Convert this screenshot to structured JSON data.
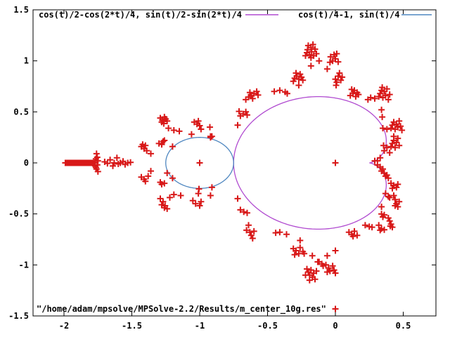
{
  "chart_data": {
    "type": "scatter",
    "title": "",
    "xlabel": "",
    "ylabel": "",
    "xlim": [
      -2.228,
      0.741
    ],
    "ylim": [
      -1.5,
      1.5
    ],
    "grid": false,
    "legend_position": "top-inside-and-bottom-inside",
    "background_color": "#ffffff",
    "border_color": "#000000",
    "x_ticks": {
      "values": [
        -2,
        -1.5,
        -1,
        -0.5,
        0,
        0.5
      ],
      "labels": [
        "-2",
        "-1.5",
        "-1",
        "-0.5",
        "0",
        "0.5"
      ]
    },
    "y_ticks": {
      "values": [
        -1.5,
        -1,
        -0.5,
        0,
        0.5,
        1,
        1.5
      ],
      "labels": [
        "-1.5",
        "-1",
        "-0.5",
        "0",
        "0.5",
        "1",
        "1.5"
      ]
    },
    "curves": [
      {
        "label": "cos(t)/2-cos(2*t)/4, sin(t)/2-sin(2*t)/4",
        "type": "parametric",
        "color": "#b04ad0",
        "x_terms": {
          "const": 0,
          "cos_t": 0.5,
          "cos_2t": -0.25
        },
        "y_terms": {
          "const": 0,
          "sin_t": 0.5,
          "sin_2t": -0.25
        },
        "t_range": [
          0,
          6.2832
        ]
      },
      {
        "label": "cos(t)/4-1, sin(t)/4",
        "type": "parametric",
        "color": "#4f87c0",
        "x_terms": {
          "const": -1,
          "cos_t": 0.25,
          "cos_2t": 0
        },
        "y_terms": {
          "const": 0,
          "sin_t": 0.25,
          "sin_2t": 0
        },
        "t_range": [
          0,
          6.2832
        ]
      }
    ],
    "scatter": {
      "label": "\"/home/adam/mpsolve/MPSolve-2.2/Results/m_center_10g.res\"",
      "color": "#d81818",
      "marker": "plus",
      "marker_size": 9,
      "points": [
        [
          0,
          0
        ],
        [
          -1,
          0
        ],
        [
          -1.99,
          0
        ],
        [
          -1.982,
          0
        ],
        [
          -1.974,
          0
        ],
        [
          -1.966,
          0
        ],
        [
          -1.958,
          0
        ],
        [
          -1.95,
          0
        ],
        [
          -1.942,
          0
        ],
        [
          -1.934,
          0
        ],
        [
          -1.926,
          0
        ],
        [
          -1.918,
          0
        ],
        [
          -1.91,
          0
        ],
        [
          -1.902,
          0
        ],
        [
          -1.894,
          0
        ],
        [
          -1.886,
          0
        ],
        [
          -1.878,
          0
        ],
        [
          -1.87,
          0
        ],
        [
          -1.862,
          0
        ],
        [
          -1.854,
          0
        ],
        [
          -1.846,
          0
        ],
        [
          -1.838,
          0
        ],
        [
          -1.83,
          0
        ],
        [
          -1.822,
          0
        ],
        [
          -1.814,
          0
        ],
        [
          -1.806,
          0
        ],
        [
          -1.798,
          0
        ],
        [
          -1.79,
          0
        ],
        [
          -1.782,
          0
        ],
        [
          -1.774,
          0
        ],
        [
          -1.76,
          0.09
        ],
        [
          -1.755,
          0.055
        ],
        [
          -1.765,
          0.04
        ],
        [
          -1.75,
          0.02
        ],
        [
          -1.77,
          0.015
        ],
        [
          -1.755,
          -0.02
        ],
        [
          -1.765,
          -0.045
        ],
        [
          -1.76,
          -0.06
        ],
        [
          -1.75,
          -0.085
        ],
        [
          -1.77,
          -0.03
        ],
        [
          -1.7,
          0.01
        ],
        [
          -1.68,
          -0.005
        ],
        [
          -1.66,
          0.03
        ],
        [
          -1.64,
          -0.03
        ],
        [
          -1.63,
          0
        ],
        [
          -1.61,
          0.05
        ],
        [
          -1.6,
          -0.01
        ],
        [
          -1.585,
          0
        ],
        [
          -1.565,
          0.015
        ],
        [
          -1.55,
          -0.015
        ],
        [
          -1.53,
          0
        ],
        [
          -1.51,
          0.005
        ],
        [
          -1.43,
          0.16
        ],
        [
          -1.42,
          0.18
        ],
        [
          -1.41,
          0.14
        ],
        [
          -1.4,
          0.17
        ],
        [
          -1.39,
          0.12
        ],
        [
          -1.36,
          0.09
        ],
        [
          -1.3,
          0.19
        ],
        [
          -1.28,
          0.18
        ],
        [
          -1.27,
          0.21
        ],
        [
          -1.26,
          0.22
        ],
        [
          -1.43,
          -0.14
        ],
        [
          -1.41,
          -0.16
        ],
        [
          -1.4,
          -0.18
        ],
        [
          -1.38,
          -0.13
        ],
        [
          -1.36,
          -0.08
        ],
        [
          -1.29,
          -0.19
        ],
        [
          -1.28,
          -0.21
        ],
        [
          -1.26,
          -0.2
        ],
        [
          -1.24,
          -0.1
        ],
        [
          -1.2,
          0.16
        ],
        [
          -1.2,
          -0.15
        ],
        [
          -1.06,
          0.28
        ],
        [
          -1.005,
          -0.255
        ],
        [
          -0.91,
          0.26
        ],
        [
          -0.91,
          -0.24
        ],
        [
          -1.29,
          0.44
        ],
        [
          -1.275,
          0.42
        ],
        [
          -1.26,
          0.45
        ],
        [
          -1.25,
          0.43
        ],
        [
          -1.28,
          0.4
        ],
        [
          -1.24,
          0.41
        ],
        [
          -1.265,
          0.385
        ],
        [
          -1.23,
          0.34
        ],
        [
          -1.19,
          0.32
        ],
        [
          -1.15,
          0.31
        ],
        [
          -1.04,
          0.4
        ],
        [
          -1.02,
          0.38
        ],
        [
          -1.01,
          0.41
        ],
        [
          -1,
          0.365
        ],
        [
          -0.99,
          0.33
        ],
        [
          -0.925,
          0.35
        ],
        [
          -0.92,
          0.26
        ],
        [
          -1.29,
          -0.35
        ],
        [
          -1.27,
          -0.38
        ],
        [
          -1.255,
          -0.42
        ],
        [
          -1.24,
          -0.45
        ],
        [
          -1.26,
          -0.44
        ],
        [
          -1.28,
          -0.41
        ],
        [
          -1.22,
          -0.34
        ],
        [
          -1.19,
          -0.31
        ],
        [
          -1.14,
          -0.32
        ],
        [
          -1.05,
          -0.37
        ],
        [
          -1.03,
          -0.4
        ],
        [
          -1,
          -0.42
        ],
        [
          -0.99,
          -0.38
        ],
        [
          -1.01,
          -0.3
        ],
        [
          -0.92,
          -0.32
        ],
        [
          -0.92,
          0.25
        ],
        [
          -0.72,
          0.37
        ],
        [
          -0.7,
          0.46
        ],
        [
          -0.68,
          0.48
        ],
        [
          -0.66,
          0.5
        ],
        [
          -0.71,
          0.505
        ],
        [
          -0.65,
          0.47
        ],
        [
          -0.66,
          0.62
        ],
        [
          -0.64,
          0.645
        ],
        [
          -0.62,
          0.66
        ],
        [
          -0.6,
          0.68
        ],
        [
          -0.63,
          0.69
        ],
        [
          -0.58,
          0.7
        ],
        [
          -0.57,
          0.665
        ],
        [
          -0.61,
          0.63
        ],
        [
          -0.72,
          -0.35
        ],
        [
          -0.7,
          -0.46
        ],
        [
          -0.675,
          -0.48
        ],
        [
          -0.65,
          -0.49
        ],
        [
          -0.64,
          -0.61
        ],
        [
          -0.655,
          -0.66
        ],
        [
          -0.63,
          -0.68
        ],
        [
          -0.62,
          -0.71
        ],
        [
          -0.61,
          -0.74
        ],
        [
          -0.6,
          -0.67
        ],
        [
          -0.45,
          0.7
        ],
        [
          -0.41,
          0.71
        ],
        [
          -0.37,
          0.695
        ],
        [
          -0.355,
          0.68
        ],
        [
          -0.31,
          0.8
        ],
        [
          -0.3,
          0.83
        ],
        [
          -0.285,
          0.85
        ],
        [
          -0.27,
          0.82
        ],
        [
          -0.26,
          0.87
        ],
        [
          -0.25,
          0.84
        ],
        [
          -0.29,
          0.88
        ],
        [
          -0.24,
          0.81
        ],
        [
          -0.27,
          0.76
        ],
        [
          -0.22,
          1.05
        ],
        [
          -0.21,
          1.08
        ],
        [
          -0.205,
          1.11
        ],
        [
          -0.19,
          1.06
        ],
        [
          -0.18,
          1.13
        ],
        [
          -0.175,
          1.09
        ],
        [
          -0.16,
          1.05
        ],
        [
          -0.15,
          1.115
        ],
        [
          -0.2,
          1.15
        ],
        [
          -0.14,
          1.07
        ],
        [
          -0.18,
          1.03
        ],
        [
          -0.165,
          1.16
        ],
        [
          -0.18,
          0.95
        ],
        [
          -0.12,
          1
        ],
        [
          -0.06,
          0.92
        ],
        [
          -0.035,
          1.04
        ],
        [
          -0.02,
          1
        ],
        [
          -0.01,
          1.06
        ],
        [
          0,
          1.02
        ],
        [
          0.02,
          0.99
        ],
        [
          -0.04,
          0.985
        ],
        [
          0.01,
          1.07
        ],
        [
          0,
          0.82
        ],
        [
          0.02,
          0.85
        ],
        [
          0.03,
          0.88
        ],
        [
          0.04,
          0.81
        ],
        [
          0.05,
          0.84
        ],
        [
          0.01,
          0.79
        ],
        [
          0.005,
          0.76
        ],
        [
          0.11,
          0.66
        ],
        [
          0.13,
          0.68
        ],
        [
          0.14,
          0.71
        ],
        [
          0.15,
          0.65
        ],
        [
          0.16,
          0.69
        ],
        [
          0.17,
          0.67
        ],
        [
          0.12,
          0.72
        ],
        [
          -0.44,
          -0.685
        ],
        [
          -0.41,
          -0.68
        ],
        [
          -0.36,
          -0.7
        ],
        [
          -0.26,
          -0.76
        ],
        [
          -0.31,
          -0.84
        ],
        [
          -0.29,
          -0.86
        ],
        [
          -0.27,
          -0.89
        ],
        [
          -0.26,
          -0.83
        ],
        [
          -0.24,
          -0.87
        ],
        [
          -0.3,
          -0.9
        ],
        [
          -0.23,
          -0.89
        ],
        [
          -0.17,
          -0.91
        ],
        [
          -0.13,
          -0.97
        ],
        [
          -0.06,
          -0.91
        ],
        [
          0,
          -0.86
        ],
        [
          -0.21,
          -1.04
        ],
        [
          -0.2,
          -1.07
        ],
        [
          -0.19,
          -1.1
        ],
        [
          -0.18,
          -1.05
        ],
        [
          -0.17,
          -1.12
        ],
        [
          -0.16,
          -1.08
        ],
        [
          -0.15,
          -1.14
        ],
        [
          -0.14,
          -1.06
        ],
        [
          -0.19,
          -1.15
        ],
        [
          -0.22,
          -1.1
        ],
        [
          -0.12,
          -0.97
        ],
        [
          -0.1,
          -0.99
        ],
        [
          -0.09,
          -1.01
        ],
        [
          -0.07,
          -1
        ],
        [
          -0.05,
          -1.03
        ],
        [
          -0.04,
          -1.06
        ],
        [
          -0.02,
          -1.01
        ],
        [
          -0.01,
          -1.05
        ],
        [
          0,
          -1.08
        ],
        [
          -0.06,
          -1.07
        ],
        [
          0.1,
          -0.68
        ],
        [
          0.12,
          -0.7
        ],
        [
          0.14,
          -0.67
        ],
        [
          0.16,
          -0.71
        ],
        [
          0.13,
          -0.72
        ],
        [
          0.22,
          -0.61
        ],
        [
          0.25,
          -0.625
        ],
        [
          0.27,
          -0.63
        ],
        [
          0.24,
          0.62
        ],
        [
          0.26,
          0.64
        ],
        [
          0.29,
          0.63
        ],
        [
          0.32,
          0.65
        ],
        [
          0.33,
          0.68
        ],
        [
          0.34,
          0.71
        ],
        [
          0.35,
          0.64
        ],
        [
          0.36,
          0.7
        ],
        [
          0.37,
          0.66
        ],
        [
          0.38,
          0.725
        ],
        [
          0.39,
          0.62
        ],
        [
          0.4,
          0.67
        ],
        [
          0.345,
          0.74
        ],
        [
          0.34,
          0.52
        ],
        [
          0.345,
          0.45
        ],
        [
          0.35,
          0.34
        ],
        [
          0.38,
          0.33
        ],
        [
          0.41,
          0.34
        ],
        [
          0.42,
          0.37
        ],
        [
          0.43,
          0.4
        ],
        [
          0.44,
          0.33
        ],
        [
          0.45,
          0.38
        ],
        [
          0.46,
          0.35
        ],
        [
          0.47,
          0.41
        ],
        [
          0.48,
          0.36
        ],
        [
          0.49,
          0.32
        ],
        [
          0.36,
          0.12
        ],
        [
          0.38,
          0.15
        ],
        [
          0.4,
          0.1
        ],
        [
          0.355,
          0.17
        ],
        [
          0.41,
          0.16
        ],
        [
          0.42,
          0.19
        ],
        [
          0.43,
          0.22
        ],
        [
          0.44,
          0.15
        ],
        [
          0.45,
          0.2
        ],
        [
          0.46,
          0.24
        ],
        [
          0.47,
          0.17
        ],
        [
          0.43,
          0.26
        ],
        [
          0.31,
          0.02
        ],
        [
          0.33,
          0.05
        ],
        [
          0.29,
          0.02
        ],
        [
          0.31,
          -0.02
        ],
        [
          0.33,
          -0.04
        ],
        [
          0.35,
          -0.06
        ],
        [
          0.34,
          -0.08
        ],
        [
          0.36,
          -0.1
        ],
        [
          0.38,
          -0.12
        ],
        [
          0.39,
          -0.15
        ],
        [
          0.37,
          -0.13
        ],
        [
          0.41,
          -0.2
        ],
        [
          0.43,
          -0.22
        ],
        [
          0.45,
          -0.24
        ],
        [
          0.46,
          -0.21
        ],
        [
          0.42,
          -0.25
        ],
        [
          0.37,
          -0.3
        ],
        [
          0.39,
          -0.33
        ],
        [
          0.4,
          -0.34
        ],
        [
          0.43,
          -0.32
        ],
        [
          0.44,
          -0.36
        ],
        [
          0.45,
          -0.4
        ],
        [
          0.46,
          -0.43
        ],
        [
          0.47,
          -0.38
        ],
        [
          0.44,
          -0.42
        ],
        [
          0.34,
          -0.43
        ],
        [
          0.34,
          -0.5
        ],
        [
          0.35,
          -0.53
        ],
        [
          0.36,
          -0.51
        ],
        [
          0.39,
          -0.54
        ],
        [
          0.4,
          -0.57
        ],
        [
          0.41,
          -0.6
        ],
        [
          0.42,
          -0.63
        ],
        [
          0.405,
          -0.62
        ],
        [
          0.32,
          -0.61
        ],
        [
          0.34,
          -0.645
        ],
        [
          0.36,
          -0.655
        ],
        [
          0.33,
          -0.66
        ]
      ]
    }
  }
}
